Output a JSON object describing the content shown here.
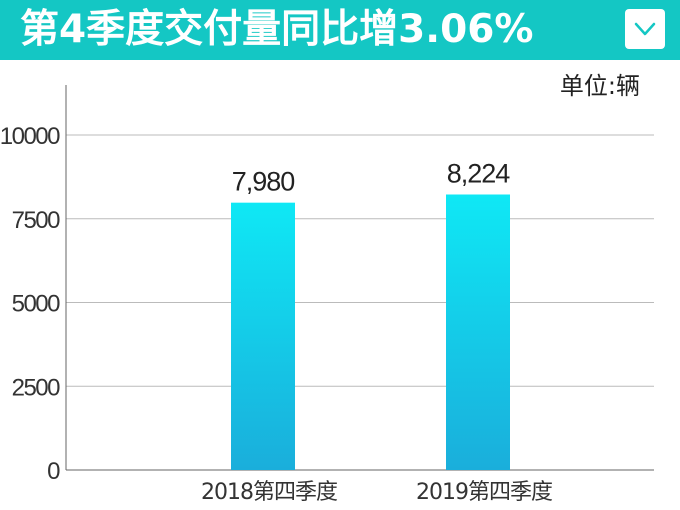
{
  "header": {
    "title": "第4季度交付量同比增3.06%",
    "dropdown_icon": "chevron-down-icon"
  },
  "unit_label": "单位:辆",
  "colors": {
    "header_bg": "#14c7c4",
    "bar_top": "#0fe8f5",
    "bar_bottom": "#1aaedb",
    "grid": "#bbbbbb"
  },
  "chart_data": {
    "type": "bar",
    "categories": [
      "2018第四季度",
      "2019第四季度"
    ],
    "values": [
      7980,
      8224
    ],
    "data_labels": [
      "7,980",
      "8,224"
    ],
    "yticks": [
      "0",
      "2500",
      "5000",
      "7500",
      "10000"
    ],
    "ylim": [
      0,
      11000
    ],
    "grid": true
  }
}
